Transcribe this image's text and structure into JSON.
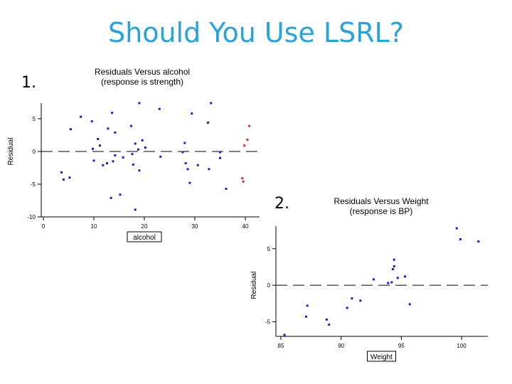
{
  "slide": {
    "title": "Should You Use LSRL?"
  },
  "plots": [
    {
      "number": "1.",
      "title_line1": "Residuals Versus alcohol",
      "title_line2": "(response is strength)"
    },
    {
      "number": "2.",
      "title_line1": "Residuals Versus Weight",
      "title_line2": "(response is BP)"
    }
  ],
  "chart_data": [
    {
      "type": "scatter",
      "title": "Residuals Versus alcohol (response is strength)",
      "xlabel": "alcohol",
      "ylabel": "Residual",
      "xlim": [
        0,
        40
      ],
      "ylim": [
        -10,
        5
      ],
      "x_ticks": [
        "0",
        "10",
        "20",
        "30",
        "40"
      ],
      "y_ticks": [
        "5",
        "0",
        "-5",
        "-10"
      ],
      "reference_line": 0,
      "grid": false,
      "series": [
        {
          "color": "#1a1ad0",
          "points": [
            [
              3.6,
              -3.2
            ],
            [
              4.0,
              -4.3
            ],
            [
              5.2,
              -4.0
            ],
            [
              5.4,
              3.4
            ],
            [
              7.4,
              5.3
            ],
            [
              9.6,
              4.6
            ],
            [
              9.8,
              0.4
            ],
            [
              10.0,
              -1.4
            ],
            [
              10.8,
              1.9
            ],
            [
              11.2,
              0.9
            ],
            [
              11.8,
              -2.1
            ],
            [
              12.6,
              -1.8
            ],
            [
              12.8,
              3.5
            ],
            [
              13.4,
              -7.1
            ],
            [
              13.6,
              5.9
            ],
            [
              13.8,
              -1.5
            ],
            [
              14.2,
              2.9
            ],
            [
              14.2,
              -0.6
            ],
            [
              15.2,
              -6.6
            ],
            [
              15.8,
              -0.9
            ],
            [
              17.4,
              3.9
            ],
            [
              17.6,
              -0.4
            ],
            [
              17.8,
              -2.0
            ],
            [
              18.2,
              -8.9
            ],
            [
              18.2,
              1.2
            ],
            [
              18.8,
              0.3
            ],
            [
              19.0,
              7.4
            ],
            [
              19.0,
              -2.9
            ],
            [
              19.6,
              1.7
            ],
            [
              20.2,
              0.6
            ],
            [
              23.0,
              6.5
            ],
            [
              23.2,
              -0.8
            ],
            [
              27.6,
              -0.1
            ],
            [
              28.0,
              1.3
            ],
            [
              28.2,
              -1.8
            ],
            [
              28.6,
              -2.7
            ],
            [
              29.0,
              -4.8
            ],
            [
              29.4,
              5.8
            ],
            [
              30.6,
              -2.1
            ],
            [
              32.6,
              4.4
            ],
            [
              32.8,
              -2.7
            ],
            [
              33.2,
              7.4
            ],
            [
              35.0,
              -1.0
            ],
            [
              35.0,
              -0.1
            ],
            [
              36.2,
              -5.7
            ]
          ]
        },
        {
          "color": "#d02a2a",
          "points": [
            [
              39.4,
              -4.1
            ],
            [
              39.6,
              -4.6
            ],
            [
              39.8,
              0.9
            ],
            [
              40.4,
              1.8
            ],
            [
              40.8,
              3.9
            ]
          ]
        }
      ]
    },
    {
      "type": "scatter",
      "title": "Residuals Versus Weight (response is BP)",
      "xlabel": "Weight",
      "ylabel": "Residual",
      "xlim": [
        85,
        101
      ],
      "ylim": [
        -7,
        8
      ],
      "x_ticks": [
        "85",
        "90",
        "95",
        "100"
      ],
      "y_ticks": [
        "5",
        "0",
        "-5"
      ],
      "reference_line": 0,
      "grid": false,
      "series": [
        {
          "color": "#1a1ad0",
          "points": [
            [
              85.3,
              -6.8
            ],
            [
              87.1,
              -4.3
            ],
            [
              87.2,
              -2.8
            ],
            [
              88.8,
              -4.7
            ],
            [
              89.0,
              -5.4
            ],
            [
              90.5,
              -3.1
            ],
            [
              90.9,
              -1.8
            ],
            [
              91.6,
              -2.1
            ],
            [
              92.7,
              0.8
            ],
            [
              93.9,
              0.3
            ],
            [
              94.2,
              0.4
            ],
            [
              94.3,
              2.2
            ],
            [
              94.4,
              3.5
            ],
            [
              94.4,
              2.6
            ],
            [
              94.7,
              1.0
            ],
            [
              95.3,
              1.2
            ],
            [
              95.7,
              -2.6
            ],
            [
              99.6,
              7.8
            ],
            [
              99.9,
              6.3
            ],
            [
              101.4,
              6.0
            ]
          ]
        }
      ]
    }
  ]
}
